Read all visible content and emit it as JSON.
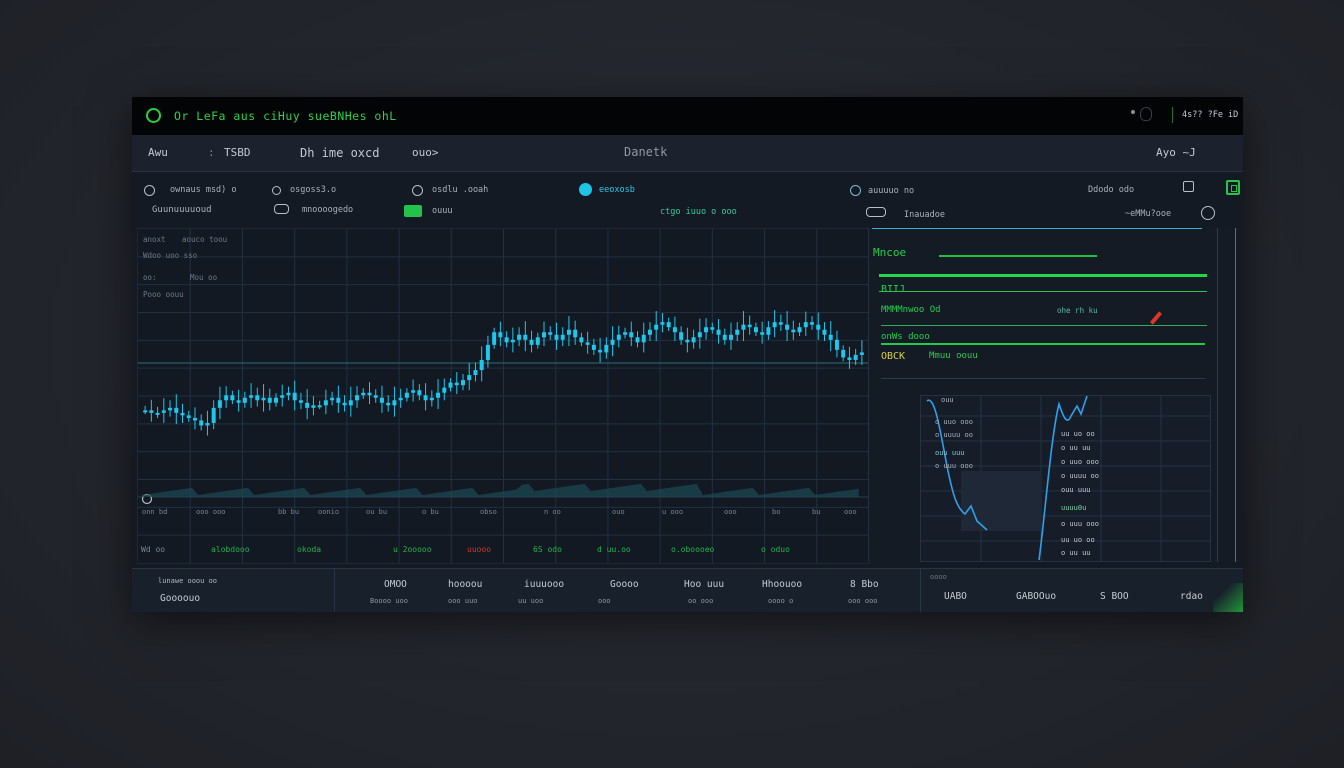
{
  "window": {
    "title": "Or LeFa aus ciHuy sueBNHes ohL",
    "status_right": "4s?? ?Fe iD"
  },
  "toolbar": {
    "item1": "Awu",
    "item2": "TSBD",
    "item3": "Dh ime oxcd",
    "item4": "ouo>",
    "center": "Danetk",
    "right": "Ayo ~J"
  },
  "info_row": {
    "a1": "ownaus msd) o",
    "a2": "osgoss3.o",
    "a3": "osdlu .ooah",
    "a4": "eeoxosb",
    "a5": "auuuuo no",
    "a6": "Ddodo odo",
    "b1": "Guunuuuuoud",
    "b2": "mnoooogedo",
    "b3": "ouuu",
    "b4": "ctgo iuuo o ooo",
    "b5": "Inauadoe",
    "b6": "~eMMu?ooe"
  },
  "chart": {
    "legend": [
      "anoxt",
      "aouco toou",
      "Wdoo uoo sso",
      "oo:",
      "Mou oo",
      "Pooo oouu"
    ],
    "x_labels": [
      "onn bd",
      "ooo ooo",
      "bb bu",
      "oonio",
      "ou bu",
      "o bu",
      "obso",
      "n oo",
      "ouo",
      "u ooo",
      "ooo",
      "bo",
      "bu",
      "ooo"
    ],
    "tick_labels": [
      "Wd oo",
      "alobdooo",
      "okoda",
      "u 2ooooo",
      "uuooo",
      "6S odo",
      "d uu.oo",
      "o.oboooeo",
      "o oduo"
    ],
    "colors": {
      "candle": "#1ec7ee",
      "grid": "#213041",
      "ref": "#2a6e7c",
      "volume": "#1c4a56"
    }
  },
  "chart_data": {
    "type": "candlestick",
    "title": "",
    "xlabel": "",
    "ylabel": "",
    "ylim": [
      0,
      100
    ],
    "close": [
      32,
      31,
      31,
      32,
      33,
      31,
      30,
      29,
      28,
      26,
      27,
      33,
      36,
      38,
      36,
      35,
      37,
      38,
      36,
      37,
      35,
      37,
      38,
      39,
      36,
      35,
      33,
      34,
      34,
      36,
      37,
      35,
      34,
      36,
      38,
      39,
      38,
      37,
      35,
      34,
      36,
      37,
      39,
      40,
      38,
      36,
      37,
      39,
      41,
      43,
      42,
      44,
      46,
      48,
      52,
      58,
      63,
      61,
      59,
      60,
      62,
      60,
      58,
      61,
      63,
      62,
      60,
      62,
      64,
      61,
      59,
      58,
      56,
      55,
      58,
      60,
      62,
      63,
      61,
      59,
      62,
      64,
      66,
      67,
      65,
      63,
      60,
      59,
      61,
      63,
      65,
      64,
      62,
      60,
      62,
      64,
      66,
      65,
      63,
      62,
      65,
      67,
      66,
      64,
      63,
      65,
      67,
      66,
      64,
      62,
      60,
      56,
      53,
      52,
      54,
      55
    ]
  },
  "right_panel": {
    "r1": "Mncoe",
    "r2": "BIIJ",
    "r3": "MMMMnwoo Od",
    "r4": "onWs dooo",
    "r5": "OBCK",
    "r6": "ohe rh ku",
    "r7": "Mmuu oouu",
    "r8": "uuuu0u",
    "mini_rows": [
      "ouu",
      "o uuo ooo",
      "o uuuu oo",
      "ouu uuu",
      "o uuu ooo",
      "uu uo oo",
      "o uu uu"
    ]
  },
  "footer": {
    "c1": "lunawe ooou oo",
    "c2": "Goooouo",
    "c3": "OMOO",
    "c4": "hoooou",
    "c5": "iuuuooo",
    "c6": "Goooo",
    "c7": "Hoo uuu",
    "c8": "Hhoouoo",
    "c9": "8 Bbo",
    "s1": "Boooo uoo",
    "s2": "ooo uuo",
    "s3": "uu uoo",
    "s4": "ooo",
    "s5": "oo ooo",
    "s6": "oooo o",
    "s7": "ooo ooo",
    "s8": "oooo",
    "r1": "UABO",
    "r2": "GABOOuo",
    "r3": "S BOO",
    "r4": "rdao"
  }
}
